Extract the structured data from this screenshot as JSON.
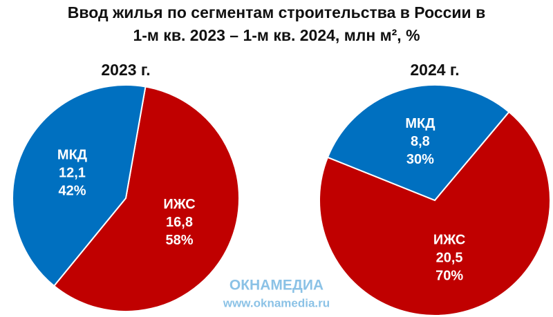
{
  "title": [
    "Ввод жилья по сегментам строительства в России в",
    "1-м кв. 2023 – 1-м кв. 2024, млн м², %"
  ],
  "watermark": {
    "brand": "ОКНАМЕДИА",
    "url": "www.oknamedia.ru"
  },
  "chart_data": [
    {
      "type": "pie",
      "title": "2023 г.",
      "categories": [
        "ИЖС",
        "МКД"
      ],
      "colors": [
        "#c00000",
        "#0070c0"
      ],
      "values": [
        16.8,
        12.1
      ],
      "value_labels": [
        "16,8",
        "12,1"
      ],
      "percents": [
        58,
        42
      ],
      "percent_labels": [
        "58%",
        "42%"
      ]
    },
    {
      "type": "pie",
      "title": "2024 г.",
      "categories": [
        "ИЖС",
        "МКД"
      ],
      "colors": [
        "#c00000",
        "#0070c0"
      ],
      "values": [
        20.5,
        8.8
      ],
      "value_labels": [
        "20,5",
        "8,8"
      ],
      "percents": [
        70,
        30
      ],
      "percent_labels": [
        "70%",
        "30%"
      ]
    }
  ]
}
